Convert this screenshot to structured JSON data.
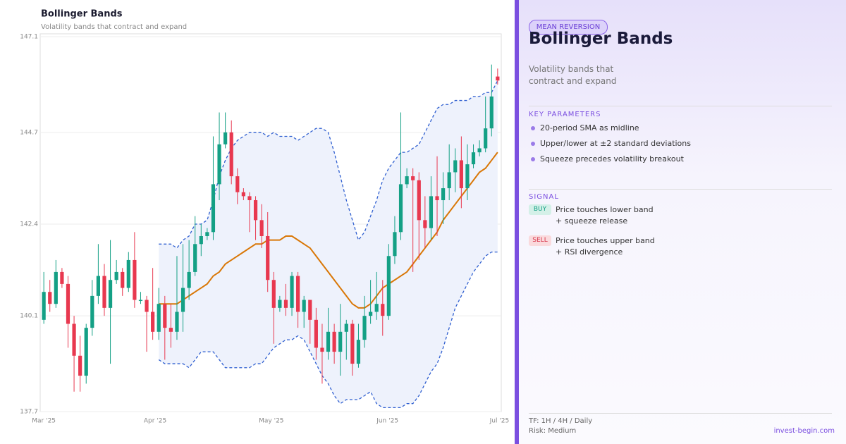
{
  "chart_data": {
    "type": "candlestick",
    "title": "Bollinger Bands",
    "subtitle": "Volatility bands that contract and expand",
    "xlim": [
      -0.6,
      75.6
    ],
    "xticks": [
      {
        "value": 0,
        "label": "Mar '25"
      },
      {
        "value": 18.4,
        "label": "Apr '25"
      },
      {
        "value": 37.6,
        "label": "May '25"
      },
      {
        "value": 56.8,
        "label": "Jun '25"
      },
      {
        "value": 75.3,
        "label": "Jul '25"
      }
    ],
    "ylim": [
      137.7,
      147.1
    ],
    "yticks": [
      137.7,
      140.1,
      142.4,
      144.7,
      147.1
    ],
    "grid": true,
    "up_color": "#14a085",
    "down_color": "#e8384f",
    "band_fill": "#eef2fc",
    "ohlc": {
      "open": [
        140.0,
        140.7,
        140.4,
        141.2,
        140.9,
        139.9,
        139.1,
        138.6,
        139.8,
        140.6,
        141.1,
        140.3,
        141.0,
        141.2,
        140.8,
        141.5,
        140.5,
        140.5,
        140.2,
        139.7,
        140.4,
        139.8,
        139.7,
        140.2,
        140.8,
        141.2,
        141.9,
        142.1,
        142.2,
        143.4,
        144.4,
        144.7,
        143.6,
        143.2,
        143.1,
        143.0,
        142.5,
        142.1,
        141.0,
        140.3,
        140.5,
        140.3,
        141.1,
        140.2,
        140.5,
        140.0,
        139.3,
        139.2,
        139.7,
        139.2,
        139.7,
        139.9,
        138.9,
        139.5,
        140.1,
        140.2,
        140.4,
        140.1,
        141.6,
        142.2,
        143.4,
        143.6,
        143.5,
        142.5,
        142.3,
        143.1,
        143.0,
        143.3,
        143.7,
        144.0,
        143.3,
        143.9,
        144.2,
        144.3,
        144.8,
        146.1
      ],
      "high": [
        141.2,
        141.0,
        141.5,
        141.3,
        141.1,
        140.1,
        139.6,
        139.9,
        141.0,
        141.9,
        141.4,
        142.0,
        141.5,
        141.3,
        141.7,
        142.2,
        140.7,
        140.6,
        141.3,
        140.8,
        140.6,
        140.4,
        141.6,
        141.9,
        142.0,
        142.6,
        142.4,
        142.3,
        144.6,
        145.2,
        145.2,
        145.0,
        143.8,
        143.3,
        143.2,
        143.1,
        142.9,
        142.7,
        141.2,
        140.6,
        140.9,
        141.2,
        141.2,
        140.6,
        140.5,
        140.3,
        139.9,
        140.3,
        139.9,
        140.4,
        140.0,
        140.0,
        139.9,
        140.6,
        141.0,
        141.2,
        141.0,
        141.9,
        142.6,
        145.2,
        143.8,
        143.8,
        143.7,
        143.1,
        143.6,
        144.1,
        143.7,
        144.4,
        144.3,
        144.6,
        144.4,
        144.4,
        144.5,
        145.6,
        146.4,
        146.3
      ],
      "low": [
        139.9,
        140.2,
        140.3,
        140.8,
        139.3,
        138.2,
        138.2,
        138.4,
        139.6,
        140.4,
        140.1,
        138.9,
        140.9,
        140.6,
        140.7,
        140.3,
        140.4,
        139.2,
        139.5,
        139.5,
        139.0,
        139.3,
        139.5,
        139.7,
        140.5,
        141.1,
        141.6,
        142.0,
        142.0,
        143.0,
        144.3,
        143.4,
        142.9,
        143.0,
        142.2,
        142.0,
        141.8,
        140.7,
        139.4,
        140.2,
        140.1,
        140.1,
        139.8,
        139.8,
        139.4,
        139.0,
        138.4,
        139.0,
        138.9,
        138.6,
        139.0,
        138.6,
        138.8,
        139.3,
        139.9,
        140.0,
        139.6,
        140.0,
        141.4,
        142.0,
        143.3,
        141.2,
        141.5,
        141.8,
        142.0,
        142.1,
        142.4,
        143.0,
        143.2,
        142.8,
        143.0,
        143.8,
        144.1,
        144.2,
        144.6,
        145.9
      ],
      "close": [
        140.7,
        140.4,
        141.2,
        140.9,
        139.9,
        139.1,
        138.6,
        139.8,
        140.6,
        141.1,
        140.3,
        141.0,
        141.2,
        140.8,
        141.5,
        140.5,
        140.5,
        140.2,
        139.7,
        140.4,
        139.8,
        139.7,
        140.2,
        140.8,
        141.2,
        141.9,
        142.1,
        142.2,
        143.4,
        144.4,
        144.7,
        143.6,
        143.2,
        143.1,
        143.0,
        142.5,
        142.1,
        141.0,
        140.3,
        140.5,
        140.3,
        141.1,
        140.2,
        140.5,
        140.0,
        139.3,
        139.2,
        139.7,
        139.2,
        139.7,
        139.9,
        138.9,
        139.5,
        140.1,
        140.2,
        140.4,
        140.1,
        141.6,
        142.2,
        143.4,
        143.6,
        143.5,
        142.5,
        142.3,
        143.1,
        143.0,
        143.3,
        143.7,
        144.0,
        143.3,
        143.9,
        144.2,
        144.3,
        144.8,
        145.6,
        146.0
      ]
    },
    "series": [
      {
        "role": "upper",
        "color": "#2f5fd0",
        "dashed": true,
        "values": [
          null,
          null,
          null,
          null,
          null,
          null,
          null,
          null,
          null,
          null,
          null,
          null,
          null,
          null,
          null,
          null,
          null,
          null,
          null,
          141.9,
          141.9,
          141.9,
          141.8,
          142.0,
          142.1,
          142.4,
          142.4,
          142.5,
          143.0,
          143.6,
          144.0,
          144.3,
          144.5,
          144.6,
          144.7,
          144.7,
          144.7,
          144.6,
          144.7,
          144.6,
          144.6,
          144.6,
          144.5,
          144.6,
          144.7,
          144.8,
          144.8,
          144.7,
          144.2,
          143.6,
          143.0,
          142.5,
          142.0,
          142.2,
          142.6,
          143.0,
          143.5,
          143.8,
          144.0,
          144.2,
          144.2,
          144.3,
          144.4,
          144.7,
          145.0,
          145.3,
          145.4,
          145.4,
          145.5,
          145.5,
          145.5,
          145.6,
          145.6,
          145.7,
          145.7,
          146.0
        ]
      },
      {
        "role": "lower",
        "color": "#2f5fd0",
        "dashed": true,
        "values": [
          null,
          null,
          null,
          null,
          null,
          null,
          null,
          null,
          null,
          null,
          null,
          null,
          null,
          null,
          null,
          null,
          null,
          null,
          null,
          139.0,
          138.9,
          138.9,
          138.9,
          138.9,
          138.8,
          139.0,
          139.2,
          139.2,
          139.2,
          139.0,
          138.8,
          138.8,
          138.8,
          138.8,
          138.8,
          138.9,
          138.9,
          139.1,
          139.3,
          139.4,
          139.5,
          139.5,
          139.6,
          139.5,
          139.2,
          138.9,
          138.6,
          138.4,
          138.1,
          137.9,
          138.0,
          138.0,
          138.0,
          138.1,
          138.2,
          137.9,
          137.8,
          137.8,
          137.8,
          137.8,
          137.9,
          137.9,
          138.1,
          138.4,
          138.7,
          138.9,
          139.3,
          139.8,
          140.3,
          140.6,
          140.9,
          141.2,
          141.4,
          141.6,
          141.7,
          141.7
        ]
      },
      {
        "role": "middle",
        "color": "#d97706",
        "dashed": false,
        "values": [
          null,
          null,
          null,
          null,
          null,
          null,
          null,
          null,
          null,
          null,
          null,
          null,
          null,
          null,
          null,
          null,
          null,
          null,
          null,
          140.4,
          140.4,
          140.4,
          140.4,
          140.5,
          140.6,
          140.7,
          140.8,
          140.9,
          141.1,
          141.2,
          141.4,
          141.5,
          141.6,
          141.7,
          141.8,
          141.9,
          141.9,
          142.0,
          142.0,
          142.0,
          142.1,
          142.1,
          142.0,
          141.9,
          141.8,
          141.6,
          141.4,
          141.2,
          141.0,
          140.8,
          140.6,
          140.4,
          140.3,
          140.3,
          140.4,
          140.6,
          140.8,
          140.9,
          141.0,
          141.1,
          141.2,
          141.4,
          141.6,
          141.8,
          142.0,
          142.2,
          142.5,
          142.7,
          142.9,
          143.1,
          143.3,
          143.5,
          143.7,
          143.8,
          144.0,
          144.2
        ]
      }
    ]
  },
  "sidebar": {
    "badge": "MEAN REVERSION",
    "title": "Bollinger Bands",
    "subtitle": "Volatility bands that contract and expand",
    "parameters": {
      "heading": "KEY PARAMETERS",
      "items": [
        "20-period SMA as midline",
        "Upper/lower at ±2 standard deviations",
        "Squeeze precedes volatility breakout"
      ]
    },
    "signal": {
      "heading": "SIGNAL",
      "items": [
        {
          "tag": "BUY",
          "text": "Price touches lower band + squeeze release"
        },
        {
          "tag": "SELL",
          "text": "Price touches upper band + RSI divergence"
        }
      ]
    },
    "footer": {
      "timeframe": "TF: 1H / 4H / Daily",
      "risk": "Risk: Medium",
      "site": "invest-begin.com"
    }
  }
}
